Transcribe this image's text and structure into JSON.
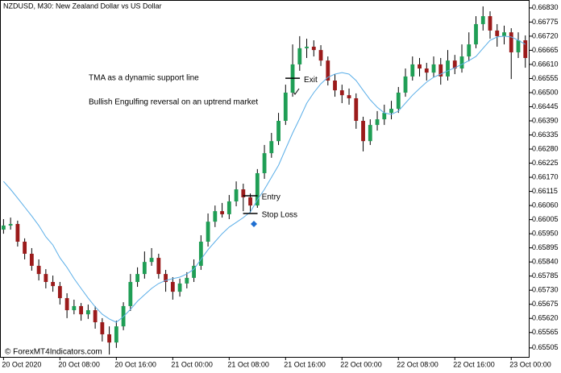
{
  "chart_data": {
    "type": "candlestick",
    "title": "NZDUSD, M30:  New Zealand Dollar vs US Dollar",
    "annotations": [
      "TMA as a dynamic support line",
      "Bullish Engulfing reversal on an uptrend market"
    ],
    "credit": "© ForexMT4Indicators.com",
    "up_color": "#1f9e55",
    "down_color": "#9b1b1b",
    "ohlc": [
      [
        0.65966,
        0.66007,
        0.6595,
        0.65982
      ],
      [
        0.65982,
        0.66013,
        0.65966,
        0.65988
      ],
      [
        0.65988,
        0.66001,
        0.659,
        0.65919
      ],
      [
        0.65919,
        0.65932,
        0.6585,
        0.65872
      ],
      [
        0.65872,
        0.65894,
        0.65806,
        0.65825
      ],
      [
        0.65825,
        0.6585,
        0.65768,
        0.65793
      ],
      [
        0.65793,
        0.65812,
        0.65737,
        0.65762
      ],
      [
        0.65762,
        0.65787,
        0.65724,
        0.65746
      ],
      [
        0.65746,
        0.65762,
        0.65674,
        0.65699
      ],
      [
        0.65699,
        0.65718,
        0.65621,
        0.65652
      ],
      [
        0.65652,
        0.65693,
        0.65636,
        0.65668
      ],
      [
        0.65668,
        0.6568,
        0.65611,
        0.65636
      ],
      [
        0.65636,
        0.65674,
        0.65618,
        0.65652
      ],
      [
        0.65652,
        0.65668,
        0.6558,
        0.65605
      ],
      [
        0.65605,
        0.65621,
        0.6553,
        0.65558
      ],
      [
        0.65558,
        0.65589,
        0.65479,
        0.65526
      ],
      [
        0.65526,
        0.65611,
        0.65505,
        0.65589
      ],
      [
        0.65589,
        0.65683,
        0.65574,
        0.65668
      ],
      [
        0.65668,
        0.65793,
        0.65649,
        0.65762
      ],
      [
        0.65762,
        0.65819,
        0.65743,
        0.65793
      ],
      [
        0.65793,
        0.65881,
        0.65775,
        0.6584
      ],
      [
        0.6584,
        0.65894,
        0.65825,
        0.65856
      ],
      [
        0.65856,
        0.65872,
        0.65775,
        0.65793
      ],
      [
        0.65793,
        0.65809,
        0.65724,
        0.65762
      ],
      [
        0.65762,
        0.65781,
        0.65693,
        0.65724
      ],
      [
        0.65724,
        0.65775,
        0.65705,
        0.65756
      ],
      [
        0.65756,
        0.658,
        0.65737,
        0.65778
      ],
      [
        0.65778,
        0.6585,
        0.65762,
        0.65825
      ],
      [
        0.65825,
        0.65944,
        0.65809,
        0.65919
      ],
      [
        0.65919,
        0.66029,
        0.659,
        0.65997
      ],
      [
        0.65997,
        0.6606,
        0.65976,
        0.66038
      ],
      [
        0.66038,
        0.6607,
        0.66013,
        0.66026
      ],
      [
        0.66026,
        0.66101,
        0.66007,
        0.66076
      ],
      [
        0.66076,
        0.66154,
        0.66057,
        0.66123
      ],
      [
        0.66123,
        0.66145,
        0.66038,
        0.66092
      ],
      [
        0.66092,
        0.66107,
        0.66032,
        0.6606
      ],
      [
        0.6606,
        0.66202,
        0.66051,
        0.66186
      ],
      [
        0.66186,
        0.66296,
        0.66164,
        0.66264
      ],
      [
        0.66264,
        0.66343,
        0.66246,
        0.66311
      ],
      [
        0.66311,
        0.66421,
        0.66296,
        0.6639
      ],
      [
        0.6639,
        0.66531,
        0.66374,
        0.665
      ],
      [
        0.665,
        0.66688,
        0.66484,
        0.6661
      ],
      [
        0.6661,
        0.6672,
        0.66585,
        0.66673
      ],
      [
        0.66673,
        0.6671,
        0.66635,
        0.66679
      ],
      [
        0.66679,
        0.66704,
        0.66641,
        0.66666
      ],
      [
        0.66666,
        0.66685,
        0.66604,
        0.66625
      ],
      [
        0.66625,
        0.66641,
        0.66528,
        0.66547
      ],
      [
        0.66547,
        0.66572,
        0.66484,
        0.66509
      ],
      [
        0.66509,
        0.66531,
        0.66459,
        0.6649
      ],
      [
        0.6649,
        0.66516,
        0.66453,
        0.66478
      ],
      [
        0.66478,
        0.66497,
        0.66359,
        0.6639
      ],
      [
        0.6639,
        0.66406,
        0.66271,
        0.66311
      ],
      [
        0.66311,
        0.66396,
        0.66296,
        0.66374
      ],
      [
        0.66374,
        0.66428,
        0.66352,
        0.66396
      ],
      [
        0.66396,
        0.66453,
        0.66374,
        0.66421
      ],
      [
        0.66421,
        0.66468,
        0.66396,
        0.66437
      ],
      [
        0.66437,
        0.66522,
        0.66421,
        0.665
      ],
      [
        0.665,
        0.66594,
        0.66484,
        0.66563
      ],
      [
        0.66563,
        0.66641,
        0.66547,
        0.6661
      ],
      [
        0.6661,
        0.66635,
        0.66563,
        0.66594
      ],
      [
        0.66594,
        0.66616,
        0.66547,
        0.66578
      ],
      [
        0.66578,
        0.66641,
        0.6656,
        0.6661
      ],
      [
        0.6661,
        0.66635,
        0.66531,
        0.66563
      ],
      [
        0.66563,
        0.66666,
        0.66547,
        0.66625
      ],
      [
        0.66625,
        0.66647,
        0.66572,
        0.66594
      ],
      [
        0.66594,
        0.66688,
        0.66578,
        0.66641
      ],
      [
        0.66641,
        0.66735,
        0.66622,
        0.66688
      ],
      [
        0.66688,
        0.66798,
        0.66673,
        0.66767
      ],
      [
        0.66767,
        0.66836,
        0.66742,
        0.66798
      ],
      [
        0.66798,
        0.66817,
        0.6671,
        0.66742
      ],
      [
        0.66742,
        0.66767,
        0.66679,
        0.6672
      ],
      [
        0.6672,
        0.66761,
        0.66688,
        0.66735
      ],
      [
        0.66735,
        0.66751,
        0.66553,
        0.66657
      ],
      [
        0.66657,
        0.66735,
        0.66635,
        0.66704
      ],
      [
        0.66704,
        0.66723,
        0.66597,
        0.66635
      ]
    ],
    "tma": {
      "color": "#5aaee8",
      "values": [
        0.66154,
        0.66123,
        0.66089,
        0.66054,
        0.66019,
        0.65982,
        0.65938,
        0.65906,
        0.65856,
        0.65819,
        0.65775,
        0.65737,
        0.65699,
        0.65665,
        0.65636,
        0.65618,
        0.65605,
        0.65627,
        0.65655,
        0.65687,
        0.65712,
        0.65737,
        0.65756,
        0.65768,
        0.65775,
        0.65781,
        0.65793,
        0.65812,
        0.6585,
        0.65888,
        0.65919,
        0.6595,
        0.65976,
        0.65994,
        0.66013,
        0.66035,
        0.66082,
        0.66123,
        0.6617,
        0.66217,
        0.6628,
        0.66343,
        0.66399,
        0.66459,
        0.665,
        0.66534,
        0.6656,
        0.66572,
        0.66578,
        0.66572,
        0.66547,
        0.66509,
        0.66472,
        0.66443,
        0.66421,
        0.66415,
        0.66428,
        0.66459,
        0.6649,
        0.66516,
        0.66541,
        0.6656,
        0.66572,
        0.66585,
        0.66597,
        0.6661,
        0.66625,
        0.66641,
        0.66673,
        0.66704,
        0.66717,
        0.6672,
        0.66717,
        0.66704,
        0.66688
      ]
    },
    "levels": [
      {
        "label": "Exit",
        "value": 0.66556,
        "x": 41
      },
      {
        "label": "Entry",
        "value": 0.66098,
        "x": 35
      },
      {
        "label": "Stop Loss",
        "value": 0.66029,
        "x": 35
      }
    ],
    "xlim": [
      -0.5,
      74.6
    ],
    "ylim": [
      0.6547,
      0.66861
    ],
    "grid": false,
    "xticks": [
      {
        "value": 0,
        "label": "20 Oct 2020"
      },
      {
        "value": 8,
        "label": "20 Oct 08:00"
      },
      {
        "value": 16,
        "label": "20 Oct 16:00"
      },
      {
        "value": 24,
        "label": "21 Oct 00:00"
      },
      {
        "value": 32,
        "label": "21 Oct 08:00"
      },
      {
        "value": 40,
        "label": "21 Oct 16:00"
      },
      {
        "value": 48,
        "label": "22 Oct 00:00"
      },
      {
        "value": 56,
        "label": "22 Oct 08:00"
      },
      {
        "value": 64,
        "label": "22 Oct 16:00"
      },
      {
        "value": 72,
        "label": "23 Oct 00:00"
      }
    ],
    "yticks": [
      {
        "value": 0.6683,
        "label": "0.66830"
      },
      {
        "value": 0.66775,
        "label": "0.66775"
      },
      {
        "value": 0.6672,
        "label": "0.66720"
      },
      {
        "value": 0.66665,
        "label": "0.66665"
      },
      {
        "value": 0.6661,
        "label": "0.66610"
      },
      {
        "value": 0.66555,
        "label": "0.66555"
      },
      {
        "value": 0.665,
        "label": "0.66500"
      },
      {
        "value": 0.66445,
        "label": "0.66445"
      },
      {
        "value": 0.6639,
        "label": "0.66390"
      },
      {
        "value": 0.66335,
        "label": "0.66335"
      },
      {
        "value": 0.6628,
        "label": "0.66280"
      },
      {
        "value": 0.66225,
        "label": "0.66225"
      },
      {
        "value": 0.6617,
        "label": "0.66170"
      },
      {
        "value": 0.66115,
        "label": "0.66115"
      },
      {
        "value": 0.6606,
        "label": "0.66060"
      },
      {
        "value": 0.66005,
        "label": "0.66005"
      },
      {
        "value": 0.6595,
        "label": "0.65950"
      },
      {
        "value": 0.65895,
        "label": "0.65895"
      },
      {
        "value": 0.6584,
        "label": "0.65840"
      },
      {
        "value": 0.65785,
        "label": "0.65785"
      },
      {
        "value": 0.6573,
        "label": "0.65730"
      },
      {
        "value": 0.65675,
        "label": "0.65675"
      },
      {
        "value": 0.6562,
        "label": "0.65620"
      },
      {
        "value": 0.65565,
        "label": "0.65565"
      },
      {
        "value": 0.65505,
        "label": "0.65505"
      }
    ]
  }
}
